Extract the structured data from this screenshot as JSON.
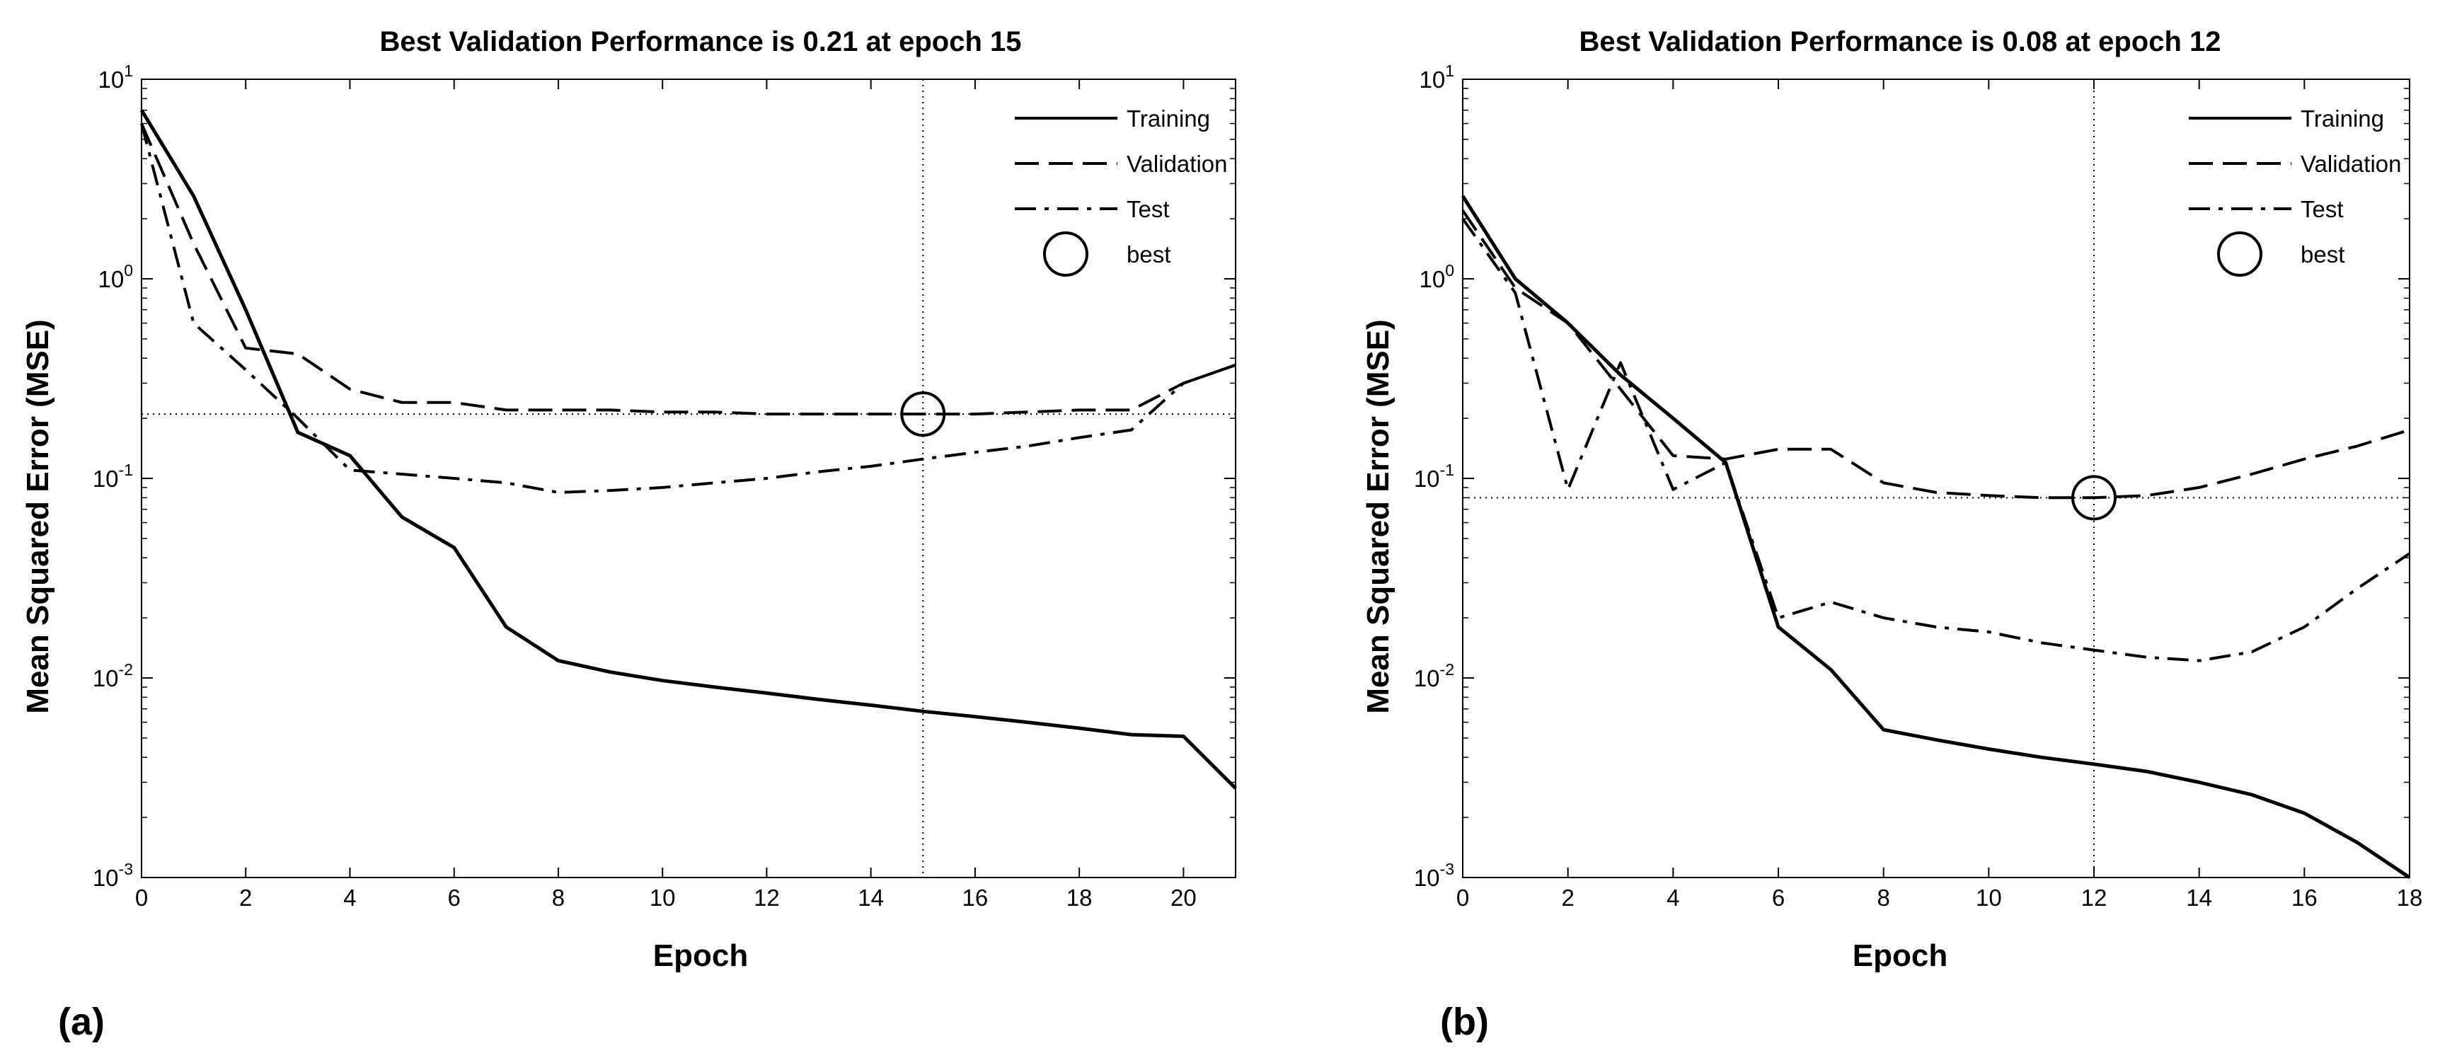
{
  "chart_data": [
    {
      "type": "line",
      "panel_label": "(a)",
      "title": "Best Validation Performance is 0.21 at epoch 15",
      "xlabel": "Epoch",
      "ylabel": "Mean Squared Error (MSE)",
      "xlim": [
        0,
        21
      ],
      "ylim": [
        0.001,
        10
      ],
      "yscale": "log",
      "xticks": [
        0,
        2,
        4,
        6,
        8,
        10,
        12,
        14,
        16,
        18,
        20
      ],
      "yticks": [
        {
          "value": 0.001,
          "base": "10",
          "exp": "-3"
        },
        {
          "value": 0.01,
          "base": "10",
          "exp": "-2"
        },
        {
          "value": 0.1,
          "base": "10",
          "exp": "-1"
        },
        {
          "value": 1,
          "base": "10",
          "exp": "0"
        },
        {
          "value": 10,
          "base": "10",
          "exp": "1"
        }
      ],
      "grid": false,
      "legend_position": "top-right",
      "best": {
        "epoch": 15,
        "value": 0.21,
        "label": "best"
      },
      "series": [
        {
          "name": "Training",
          "style": "solid",
          "x": [
            0,
            1,
            2,
            3,
            4,
            5,
            6,
            7,
            8,
            9,
            10,
            11,
            12,
            13,
            14,
            15,
            16,
            17,
            18,
            19,
            20,
            21
          ],
          "y": [
            7.0,
            2.6,
            0.7,
            0.17,
            0.13,
            0.064,
            0.045,
            0.018,
            0.0122,
            0.0107,
            0.0097,
            0.009,
            0.0084,
            0.0078,
            0.0073,
            0.0068,
            0.0064,
            0.006,
            0.0056,
            0.0052,
            0.0051,
            0.0028
          ]
        },
        {
          "name": "Validation",
          "style": "dashed",
          "x": [
            0,
            1,
            2,
            3,
            4,
            5,
            6,
            7,
            8,
            9,
            10,
            11,
            12,
            13,
            14,
            15,
            16,
            17,
            18,
            19,
            20,
            21
          ],
          "y": [
            6.0,
            1.5,
            0.45,
            0.42,
            0.28,
            0.24,
            0.24,
            0.22,
            0.22,
            0.22,
            0.215,
            0.215,
            0.21,
            0.21,
            0.21,
            0.21,
            0.21,
            0.215,
            0.22,
            0.22,
            0.3,
            0.37
          ]
        },
        {
          "name": "Test",
          "style": "dashdot",
          "x": [
            0,
            1,
            2,
            3,
            4,
            5,
            6,
            7,
            8,
            9,
            10,
            11,
            12,
            13,
            14,
            15,
            16,
            17,
            18,
            19,
            20,
            21
          ],
          "y": [
            6.0,
            0.6,
            0.35,
            0.2,
            0.11,
            0.105,
            0.1,
            0.095,
            0.085,
            0.087,
            0.09,
            0.095,
            0.1,
            0.108,
            0.115,
            0.125,
            0.135,
            0.145,
            0.16,
            0.175,
            0.3,
            0.37
          ]
        }
      ]
    },
    {
      "type": "line",
      "panel_label": "(b)",
      "title": "Best Validation Performance is 0.08 at epoch 12",
      "xlabel": "Epoch",
      "ylabel": "Mean Squared Error (MSE)",
      "xlim": [
        0,
        18
      ],
      "ylim": [
        0.001,
        10
      ],
      "yscale": "log",
      "xticks": [
        0,
        2,
        4,
        6,
        8,
        10,
        12,
        14,
        16,
        18
      ],
      "yticks": [
        {
          "value": 0.001,
          "base": "10",
          "exp": "-3"
        },
        {
          "value": 0.01,
          "base": "10",
          "exp": "-2"
        },
        {
          "value": 0.1,
          "base": "10",
          "exp": "-1"
        },
        {
          "value": 1,
          "base": "10",
          "exp": "0"
        },
        {
          "value": 10,
          "base": "10",
          "exp": "1"
        }
      ],
      "grid": false,
      "legend_position": "top-right",
      "best": {
        "epoch": 12,
        "value": 0.08,
        "label": "best"
      },
      "series": [
        {
          "name": "Training",
          "style": "solid",
          "x": [
            0,
            1,
            2,
            3,
            4,
            5,
            6,
            7,
            8,
            9,
            10,
            11,
            12,
            13,
            14,
            15,
            16,
            17,
            18
          ],
          "y": [
            2.6,
            1.0,
            0.6,
            0.33,
            0.2,
            0.12,
            0.018,
            0.011,
            0.0055,
            0.0049,
            0.0044,
            0.004,
            0.0037,
            0.0034,
            0.003,
            0.0026,
            0.0021,
            0.0015,
            0.001
          ]
        },
        {
          "name": "Validation",
          "style": "dashed",
          "x": [
            0,
            1,
            2,
            3,
            4,
            5,
            6,
            7,
            8,
            9,
            10,
            11,
            12,
            13,
            14,
            15,
            16,
            17,
            18
          ],
          "y": [
            2.2,
            0.9,
            0.6,
            0.28,
            0.13,
            0.125,
            0.14,
            0.14,
            0.095,
            0.085,
            0.082,
            0.08,
            0.08,
            0.082,
            0.09,
            0.105,
            0.125,
            0.145,
            0.175
          ]
        },
        {
          "name": "Test",
          "style": "dashdot",
          "x": [
            0,
            1,
            2,
            3,
            4,
            5,
            6,
            7,
            8,
            9,
            10,
            11,
            12,
            13,
            14,
            15,
            16,
            17,
            18
          ],
          "y": [
            2.0,
            0.85,
            0.088,
            0.38,
            0.088,
            0.12,
            0.02,
            0.024,
            0.02,
            0.018,
            0.017,
            0.015,
            0.0138,
            0.0127,
            0.0122,
            0.0135,
            0.018,
            0.028,
            0.042
          ]
        }
      ]
    }
  ]
}
